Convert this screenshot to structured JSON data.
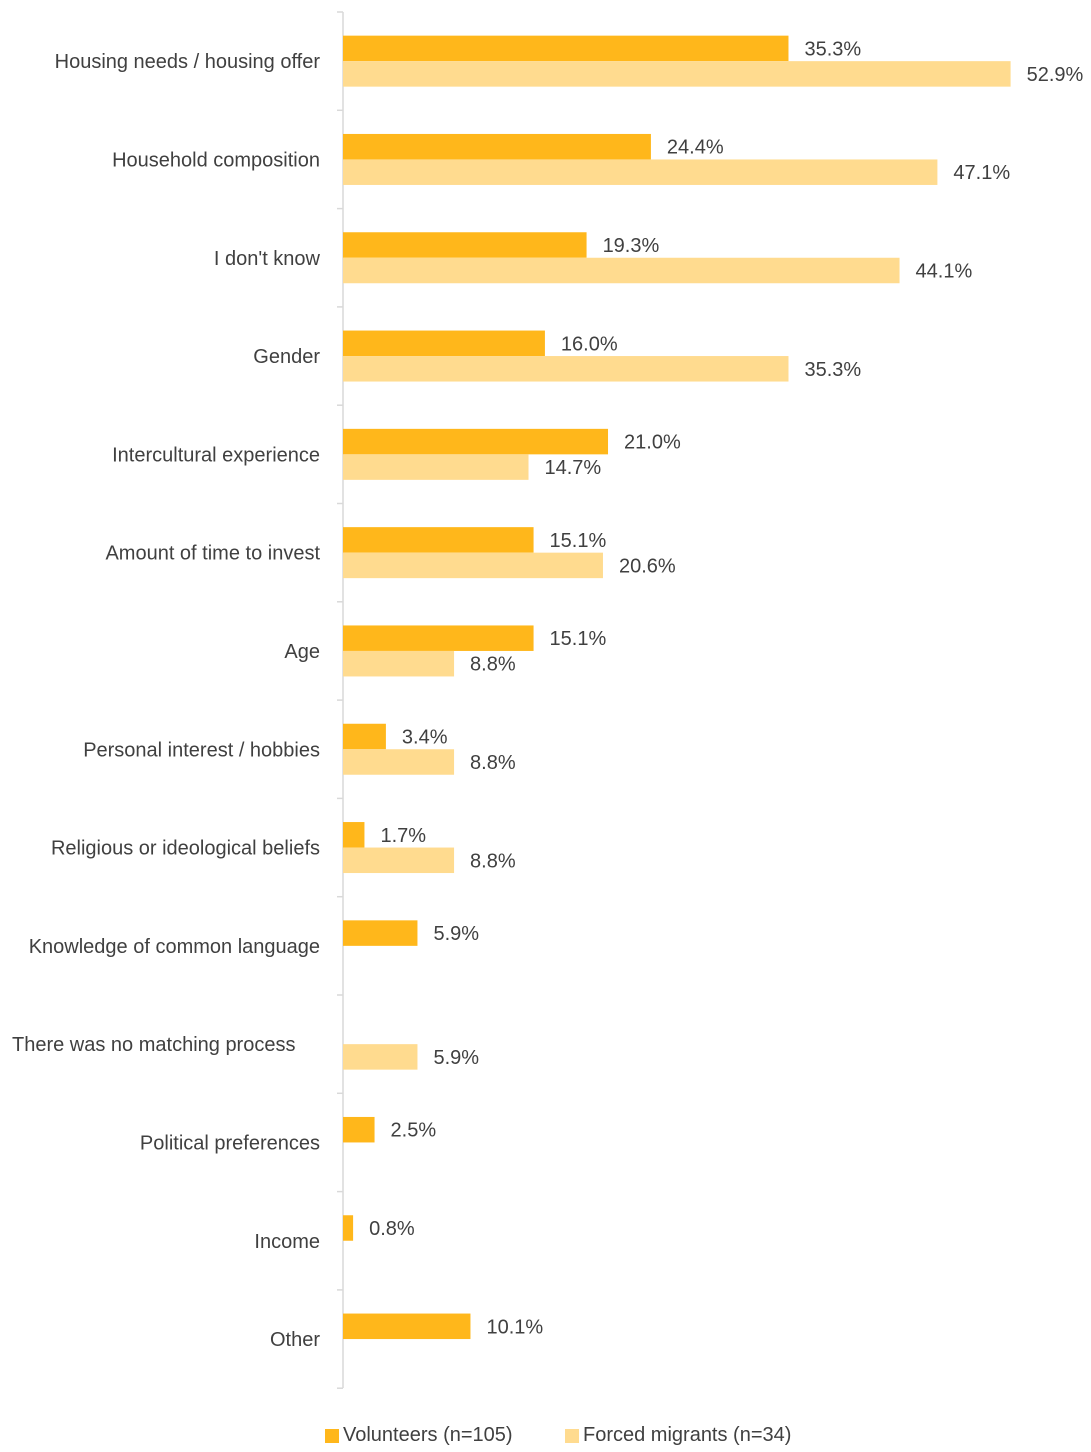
{
  "chart_data": {
    "type": "bar",
    "orientation": "horizontal",
    "categories": [
      "Housing needs / housing offer",
      "Household composition",
      "I don't know",
      "Gender",
      "Intercultural experience",
      "Amount of time to invest",
      "Age",
      "Personal interest / hobbies",
      "Religious or ideological beliefs",
      "Knowledge of common language",
      "There was no matching process",
      "Political preferences",
      "Income",
      "Other"
    ],
    "series": [
      {
        "name": "Volunteers (n=105)",
        "color": "#FFB71B",
        "values": [
          35.3,
          24.4,
          19.3,
          16.0,
          21.0,
          15.1,
          15.1,
          3.4,
          1.7,
          5.9,
          null,
          2.5,
          0.8,
          10.1
        ],
        "labels": [
          "35.3%",
          "24.4%",
          "19.3%",
          "16.0%",
          "21.0%",
          "15.1%",
          "15.1%",
          "3.4%",
          "1.7%",
          "5.9%",
          null,
          "2.5%",
          "0.8%",
          "10.1%"
        ]
      },
      {
        "name": "Forced migrants (n=34)",
        "color": "#FFDB8F",
        "values": [
          52.9,
          47.1,
          44.1,
          35.3,
          14.7,
          20.6,
          8.8,
          8.8,
          8.8,
          null,
          5.9,
          null,
          null,
          null
        ],
        "labels": [
          "52.9%",
          "47.1%",
          "44.1%",
          "35.3%",
          "14.7%",
          "20.6%",
          "8.8%",
          "8.8%",
          "8.8%",
          null,
          "5.9%",
          null,
          null,
          null
        ]
      }
    ],
    "unit": "%",
    "xlim": [
      0,
      52.9
    ],
    "grid": false,
    "legend_position": "bottom"
  }
}
